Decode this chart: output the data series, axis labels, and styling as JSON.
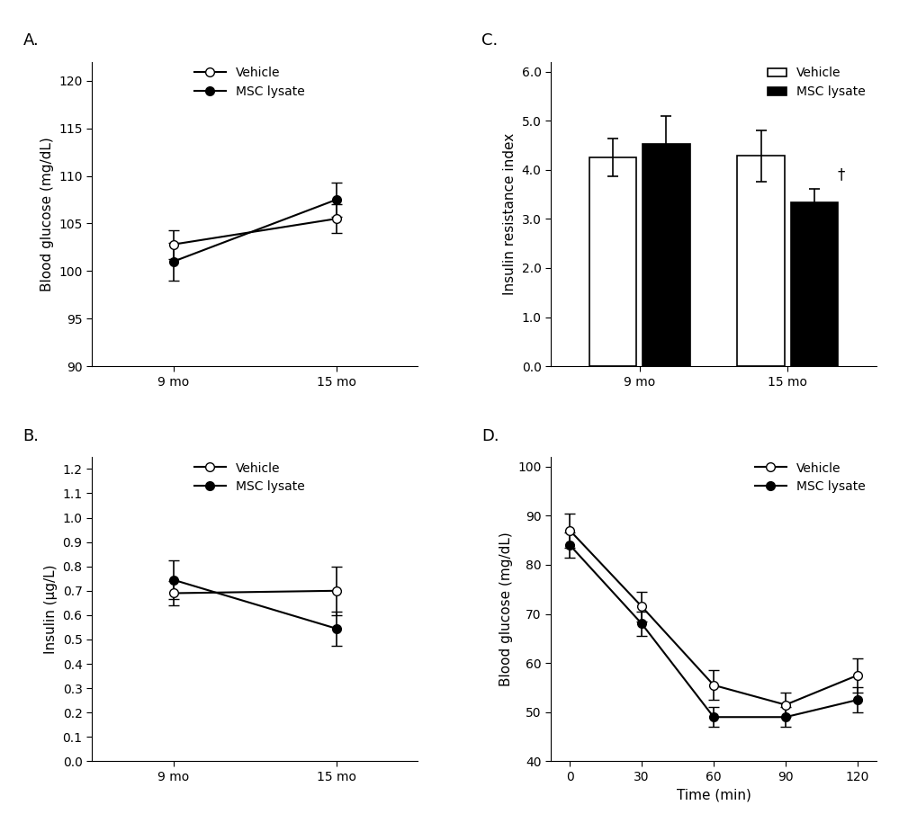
{
  "fig_width": 10.2,
  "fig_height": 9.15,
  "background_color": "#ffffff",
  "A": {
    "label": "A.",
    "ylabel": "Blood glucose (mg/dL)",
    "xtick_labels": [
      "9 mo",
      "15 mo"
    ],
    "ylim": [
      90,
      122
    ],
    "yticks": [
      90,
      95,
      100,
      105,
      110,
      115,
      120
    ],
    "vehicle_mean": [
      102.8,
      105.5
    ],
    "vehicle_err": [
      1.5,
      1.5
    ],
    "msc_mean": [
      101.0,
      107.5
    ],
    "msc_err": [
      2.0,
      1.8
    ]
  },
  "B": {
    "label": "B.",
    "ylabel": "Insulin (μg/L)",
    "xtick_labels": [
      "9 mo",
      "15 mo"
    ],
    "ylim": [
      0.0,
      1.25
    ],
    "yticks": [
      0.0,
      0.1,
      0.2,
      0.3,
      0.4,
      0.5,
      0.6,
      0.7,
      0.8,
      0.9,
      1.0,
      1.1,
      1.2
    ],
    "vehicle_mean": [
      0.69,
      0.7
    ],
    "vehicle_err": [
      0.05,
      0.1
    ],
    "msc_mean": [
      0.745,
      0.545
    ],
    "msc_err": [
      0.08,
      0.07
    ]
  },
  "C": {
    "label": "C.",
    "ylabel": "Insulin resistance index",
    "xtick_labels": [
      "9 mo",
      "15 mo"
    ],
    "ylim": [
      0.0,
      6.2
    ],
    "yticks": [
      0.0,
      1.0,
      2.0,
      3.0,
      4.0,
      5.0,
      6.0
    ],
    "vehicle_mean": [
      4.25,
      4.28
    ],
    "vehicle_err": [
      0.38,
      0.52
    ],
    "msc_mean": [
      4.52,
      3.33
    ],
    "msc_err": [
      0.58,
      0.28
    ]
  },
  "D": {
    "label": "D.",
    "xlabel": "Time (min)",
    "ylabel": "Blood glucose (mg/dL)",
    "xtick_labels": [
      "0",
      "30",
      "60",
      "90",
      "120"
    ],
    "xtick_vals": [
      0,
      30,
      60,
      90,
      120
    ],
    "ylim": [
      40,
      102
    ],
    "yticks": [
      40,
      50,
      60,
      70,
      80,
      90,
      100
    ],
    "vehicle_mean": [
      87.0,
      71.5,
      55.5,
      51.5,
      57.5
    ],
    "vehicle_err": [
      3.5,
      3.0,
      3.0,
      2.5,
      3.5
    ],
    "msc_mean": [
      84.0,
      68.0,
      49.0,
      49.0,
      52.5
    ],
    "msc_err": [
      2.5,
      2.5,
      2.0,
      2.0,
      2.5
    ]
  },
  "legend_vehicle": "Vehicle",
  "legend_msc": "MSC lysate",
  "line_color": "#000000",
  "vehicle_marker_face": "#ffffff",
  "msc_marker_face": "#000000",
  "bar_vehicle_color": "#ffffff",
  "bar_msc_color": "#000000",
  "bar_edgecolor": "#000000",
  "fontsize": 11,
  "tick_fontsize": 10,
  "label_fontsize": 13
}
